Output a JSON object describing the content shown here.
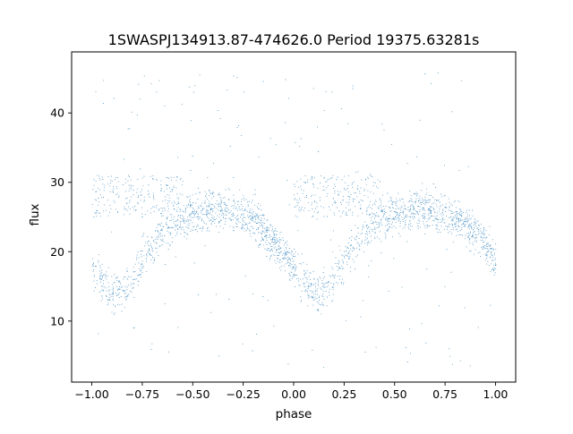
{
  "chart_data": {
    "type": "scatter",
    "title": "1SWASPJ134913.87-474626.0 Period 19375.63281s",
    "xlabel": "phase",
    "ylabel": "flux",
    "xlim": [
      -1.1,
      1.1
    ],
    "ylim": [
      1.2,
      48.8
    ],
    "x_ticks": [
      -1.0,
      -0.75,
      -0.5,
      -0.25,
      0.0,
      0.25,
      0.5,
      0.75,
      1.0
    ],
    "x_tick_labels": [
      "−1.00",
      "−0.75",
      "−0.50",
      "−0.25",
      "0.00",
      "0.25",
      "0.50",
      "0.75",
      "1.00"
    ],
    "y_ticks": [
      10,
      20,
      30,
      40
    ],
    "y_tick_labels": [
      "10",
      "20",
      "30",
      "40"
    ],
    "grid": false,
    "legend": "none",
    "marker_color": "#1f77b4",
    "series": [
      {
        "phase_profile": {
          "x": [
            -1.0,
            -0.95,
            -0.9,
            -0.87,
            -0.82,
            -0.75,
            -0.65,
            -0.55,
            -0.45,
            -0.35,
            -0.25,
            -0.18,
            -0.1,
            -0.05,
            0.0,
            0.05,
            0.1,
            0.13,
            0.18,
            0.25,
            0.35,
            0.45,
            0.55,
            0.65,
            0.75,
            0.82,
            0.9,
            0.95,
            1.0
          ],
          "y": [
            18.0,
            15.5,
            14.2,
            14.0,
            15.0,
            19.0,
            23.0,
            25.0,
            25.8,
            26.0,
            25.5,
            24.0,
            21.5,
            19.5,
            17.8,
            15.8,
            14.2,
            14.0,
            15.5,
            19.0,
            23.0,
            25.0,
            25.8,
            26.0,
            25.5,
            24.5,
            22.8,
            21.0,
            18.0
          ],
          "scatter_half_width": 4.5
        },
        "upper_band": {
          "y_range": [
            25,
            31
          ],
          "note_segments": [
            [
              -1.0,
              -0.55
            ],
            [
              0.0,
              0.45
            ]
          ]
        },
        "outlier_range": [
          3,
          46
        ]
      }
    ]
  }
}
